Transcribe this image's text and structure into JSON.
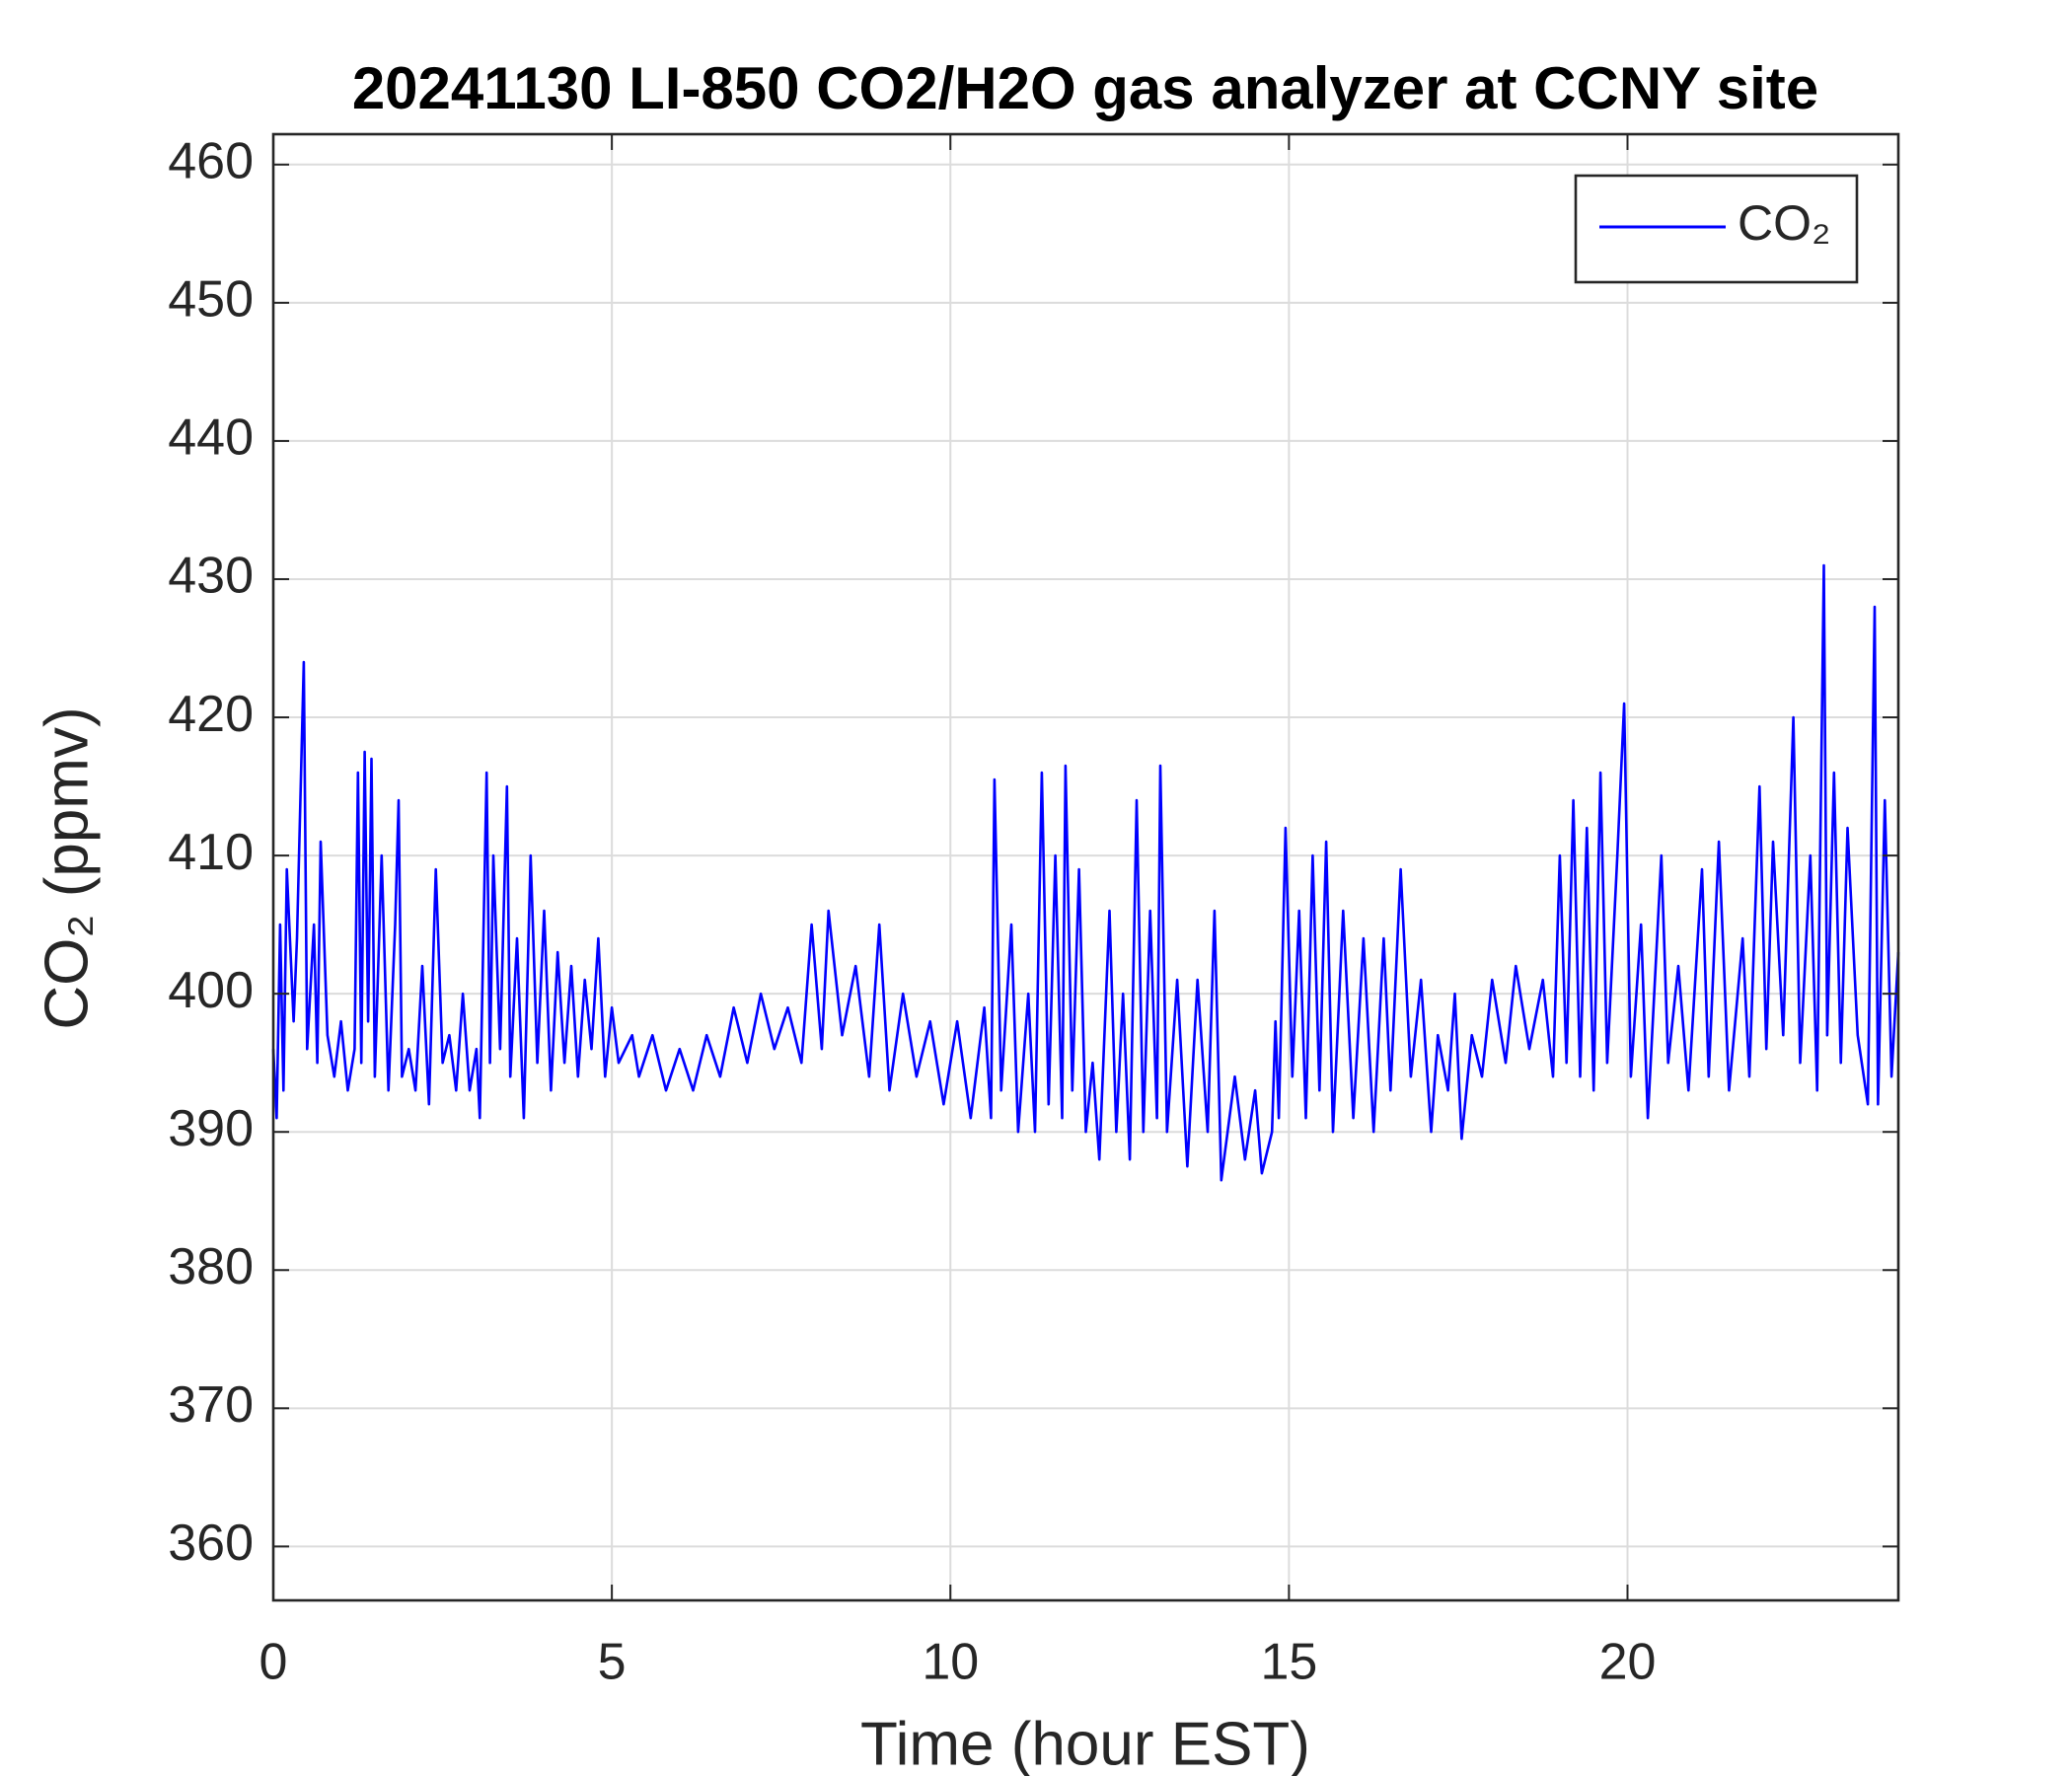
{
  "chart_data": {
    "type": "line",
    "title": "20241130 LI-850 CO2/H2O gas analyzer at CCNY site",
    "x_label": "Time (hour EST)",
    "y_label": "CO₂ (ppmv)",
    "xlim": [
      0,
      24
    ],
    "xticks": [
      0,
      5,
      10,
      15,
      20
    ],
    "ylim": [
      356.1,
      462.2
    ],
    "yticks": [
      360,
      370,
      380,
      390,
      400,
      410,
      420,
      430,
      440,
      450,
      460
    ],
    "grid": true,
    "legend": "upper right",
    "series": [
      {
        "name": "CO₂",
        "color": "#0000ff",
        "x": [
          0.0,
          0.05,
          0.1,
          0.15,
          0.2,
          0.3,
          0.35,
          0.45,
          0.5,
          0.6,
          0.65,
          0.7,
          0.8,
          0.9,
          1.0,
          1.1,
          1.2,
          1.25,
          1.3,
          1.35,
          1.4,
          1.45,
          1.5,
          1.6,
          1.7,
          1.8,
          1.85,
          1.9,
          2.0,
          2.1,
          2.2,
          2.3,
          2.4,
          2.5,
          2.6,
          2.7,
          2.8,
          2.9,
          3.0,
          3.05,
          3.15,
          3.2,
          3.25,
          3.35,
          3.45,
          3.5,
          3.6,
          3.7,
          3.8,
          3.9,
          4.0,
          4.1,
          4.2,
          4.3,
          4.4,
          4.5,
          4.6,
          4.7,
          4.8,
          4.9,
          5.0,
          5.1,
          5.3,
          5.4,
          5.6,
          5.8,
          6.0,
          6.2,
          6.4,
          6.6,
          6.8,
          7.0,
          7.2,
          7.4,
          7.6,
          7.8,
          7.95,
          8.1,
          8.2,
          8.4,
          8.6,
          8.8,
          8.95,
          9.1,
          9.3,
          9.5,
          9.7,
          9.9,
          10.1,
          10.3,
          10.5,
          10.6,
          10.65,
          10.75,
          10.9,
          11.0,
          11.15,
          11.25,
          11.35,
          11.45,
          11.55,
          11.65,
          11.7,
          11.8,
          11.9,
          12.0,
          12.1,
          12.2,
          12.35,
          12.45,
          12.55,
          12.65,
          12.75,
          12.85,
          12.95,
          13.05,
          13.1,
          13.2,
          13.35,
          13.5,
          13.65,
          13.8,
          13.9,
          14.0,
          14.2,
          14.35,
          14.5,
          14.6,
          14.75,
          14.8,
          14.85,
          14.95,
          15.05,
          15.15,
          15.25,
          15.35,
          15.45,
          15.55,
          15.65,
          15.8,
          15.95,
          16.1,
          16.25,
          16.4,
          16.5,
          16.65,
          16.8,
          16.95,
          17.1,
          17.2,
          17.35,
          17.45,
          17.55,
          17.7,
          17.85,
          18.0,
          18.2,
          18.35,
          18.55,
          18.75,
          18.9,
          19.0,
          19.1,
          19.2,
          19.3,
          19.4,
          19.5,
          19.6,
          19.7,
          19.85,
          19.95,
          20.05,
          20.2,
          20.3,
          20.5,
          20.6,
          20.75,
          20.9,
          21.1,
          21.2,
          21.35,
          21.5,
          21.7,
          21.8,
          21.95,
          22.05,
          22.15,
          22.3,
          22.45,
          22.55,
          22.7,
          22.8,
          22.9,
          22.95,
          23.05,
          23.15,
          23.25,
          23.4,
          23.55,
          23.65,
          23.7,
          23.8,
          23.9,
          24.0
        ],
        "values": [
          396,
          391,
          405,
          393,
          409,
          398,
          404,
          424,
          396,
          405,
          395,
          411,
          397,
          394,
          398,
          393,
          396,
          416,
          395,
          417.5,
          398,
          417,
          394,
          410,
          393,
          405,
          414,
          394,
          396,
          393,
          402,
          392,
          409,
          395,
          397,
          393,
          400,
          393,
          396,
          391,
          416,
          395,
          410,
          396,
          415,
          394,
          404,
          391,
          410,
          395,
          406,
          393,
          403,
          395,
          402,
          394,
          401,
          396,
          404,
          394,
          399,
          395,
          397,
          394,
          397,
          393,
          396,
          393,
          397,
          394,
          399,
          395,
          400,
          396,
          399,
          395,
          405,
          396,
          406,
          397,
          402,
          394,
          405,
          393,
          400,
          394,
          398,
          392,
          398,
          391,
          399,
          391,
          415.5,
          393,
          405,
          390,
          400,
          390,
          416,
          392,
          410,
          391,
          416.5,
          393,
          409,
          390,
          395,
          388,
          406,
          390,
          400,
          388,
          414,
          390,
          406,
          391,
          416.5,
          390,
          401,
          387.5,
          401,
          390,
          406,
          386.5,
          394,
          388,
          393,
          387,
          390,
          398,
          391,
          412,
          394,
          406,
          391,
          410,
          393,
          411,
          390,
          406,
          391,
          404,
          390,
          404,
          393,
          409,
          394,
          401,
          390,
          397,
          393,
          400,
          389.5,
          397,
          394,
          401,
          395,
          402,
          396,
          401,
          394,
          410,
          395,
          414,
          394,
          412,
          393,
          416,
          395,
          410,
          421,
          394,
          405,
          391,
          410,
          395,
          402,
          393,
          409,
          394,
          411,
          393,
          404,
          394,
          415,
          396,
          411,
          397,
          420,
          395,
          410,
          393,
          431,
          397,
          416,
          395,
          412,
          397,
          392,
          428,
          392,
          414,
          394,
          403
        ]
      }
    ]
  }
}
